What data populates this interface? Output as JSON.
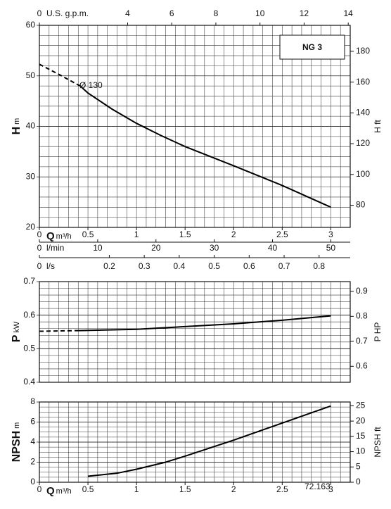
{
  "chart_data": [
    {
      "type": "line",
      "title": "NG 3",
      "annotation": "Ø 130",
      "ylabel": "H",
      "yunit": "m",
      "ylim": [
        20,
        60
      ],
      "yticks": [
        20,
        30,
        40,
        50,
        60
      ],
      "y2label": "H ft",
      "y2lim": [
        65.62,
        196.85
      ],
      "y2ticks": [
        80,
        100,
        120,
        140,
        160,
        180
      ],
      "xlim": [
        0,
        3.2
      ],
      "grid_step": [
        0.1,
        2
      ],
      "x_axes": [
        {
          "position": "top",
          "label": "U.S. g.p.m.",
          "lim": [
            0,
            14.09
          ],
          "ticks": [
            0,
            4,
            6,
            8,
            10,
            12,
            14
          ]
        },
        {
          "position": "bottom",
          "label": "Q",
          "unit": "m³/h",
          "lim": [
            0,
            3.2
          ],
          "ticks": [
            0,
            0.5,
            1,
            1.5,
            2,
            2.5,
            3
          ]
        },
        {
          "position": "bottom-2",
          "label": "l/min",
          "lim": [
            0,
            53.33
          ],
          "ticks": [
            0,
            10,
            20,
            30,
            40,
            50
          ]
        },
        {
          "position": "bottom-3",
          "label": "l/s",
          "lim": [
            0,
            0.889
          ],
          "ticks": [
            0,
            0.2,
            0.3,
            0.4,
            0.5,
            0.6,
            0.7,
            0.8
          ]
        }
      ],
      "series": [
        {
          "style": "dashed",
          "color": "#000",
          "x": [
            0,
            0.2,
            0.42
          ],
          "values": [
            52.3,
            50.3,
            48
          ]
        },
        {
          "style": "solid",
          "color": "#000",
          "x": [
            0.42,
            0.5,
            0.75,
            1,
            1.25,
            1.5,
            2,
            2.5,
            3
          ],
          "values": [
            48,
            46.6,
            43.4,
            40.6,
            38.2,
            36,
            32.2,
            28.3,
            24
          ]
        }
      ]
    },
    {
      "type": "line",
      "ylabel": "P",
      "yunit": "kW",
      "ylim": [
        0.4,
        0.7
      ],
      "yticks": [
        0.4,
        0.5,
        0.6,
        0.7
      ],
      "y2label": "P HP",
      "y2lim": [
        0.536,
        0.939
      ],
      "y2ticks": [
        0.6,
        0.7,
        0.8,
        0.9
      ],
      "xlim": [
        0,
        3.2
      ],
      "grid_step": [
        0.1,
        0.02
      ],
      "x_axes": [],
      "series": [
        {
          "style": "dashed",
          "color": "#000",
          "x": [
            0,
            0.4
          ],
          "values": [
            0.552,
            0.554
          ]
        },
        {
          "style": "solid",
          "color": "#000",
          "x": [
            0.4,
            1,
            1.5,
            2,
            2.5,
            3
          ],
          "values": [
            0.554,
            0.558,
            0.566,
            0.574,
            0.585,
            0.598
          ]
        }
      ]
    },
    {
      "type": "line",
      "note": "72.163",
      "ylabel": "NPSH",
      "yunit": "m",
      "ylim": [
        0,
        8
      ],
      "yticks": [
        0,
        2,
        4,
        6,
        8
      ],
      "y2label": "NPSH ft",
      "y2lim": [
        0,
        26.25
      ],
      "y2ticks": [
        0,
        5,
        10,
        15,
        20,
        25
      ],
      "xlim": [
        0,
        3.2
      ],
      "grid_step": [
        0.1,
        0.5
      ],
      "x_axes": [
        {
          "position": "bottom",
          "label": "Q",
          "unit": "m³/h",
          "lim": [
            0,
            3.2
          ],
          "ticks": [
            0,
            0.5,
            1,
            1.5,
            2,
            2.5,
            3
          ]
        }
      ],
      "series": [
        {
          "style": "solid",
          "color": "#000",
          "x": [
            0.5,
            0.8,
            1,
            1.3,
            1.5,
            2,
            2.5,
            3
          ],
          "values": [
            0.6,
            0.9,
            1.3,
            2.0,
            2.6,
            4.2,
            5.9,
            7.6
          ]
        }
      ]
    }
  ]
}
